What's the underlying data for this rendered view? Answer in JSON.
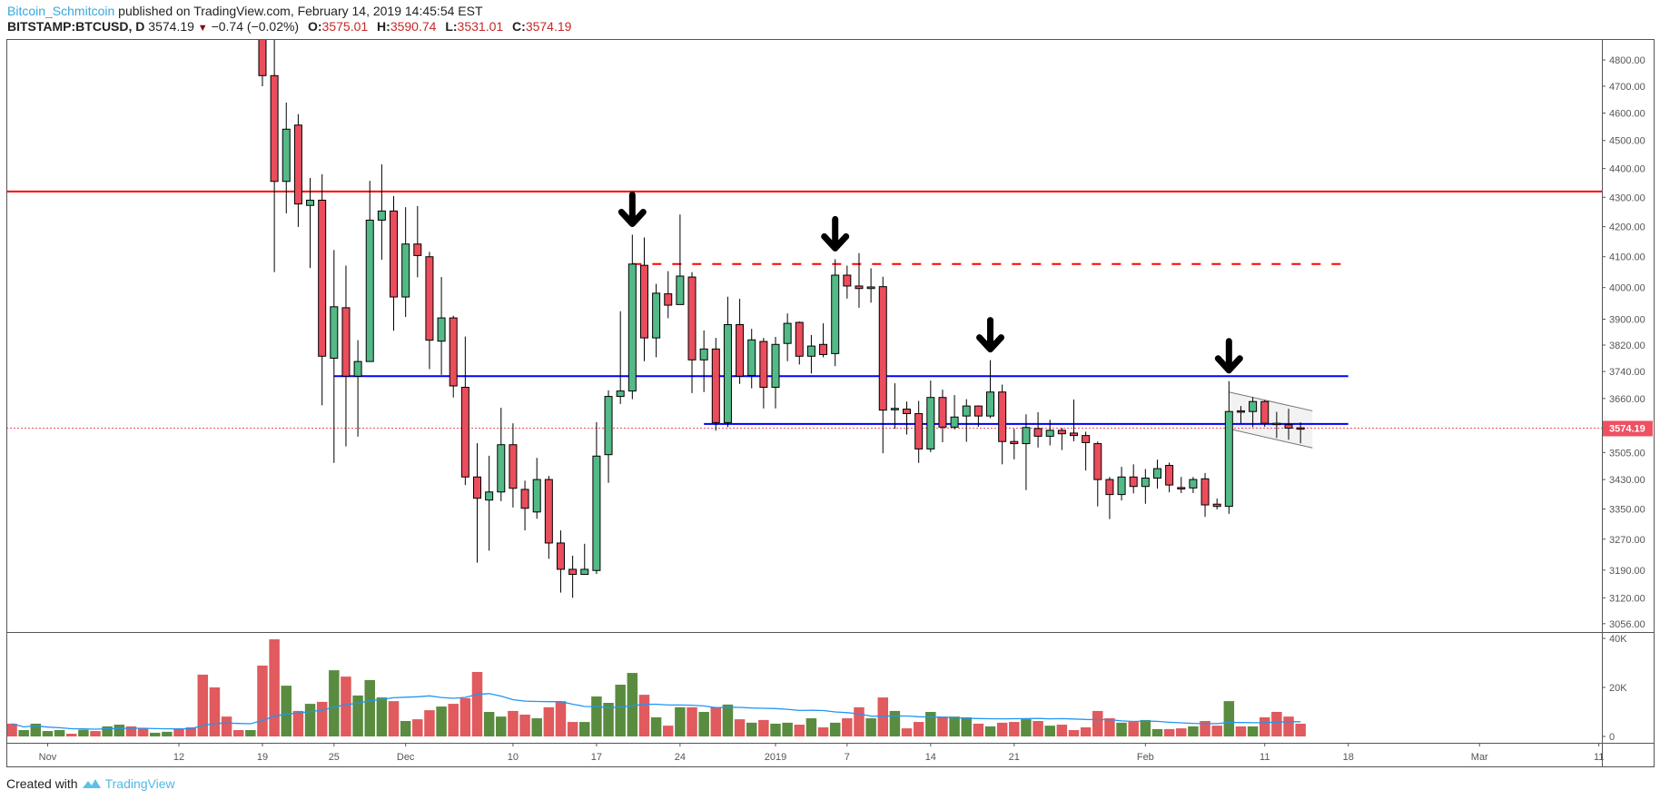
{
  "header": {
    "author": "Bitcoin_Schmitcoin",
    "published": "published on TradingView.com, February 14, 2019 14:45:54 EST",
    "symbol": "BITSTAMP:BTCUSD, D",
    "last": "3574.19",
    "change": "−0.74 (−0.02%)",
    "o_label": "O:",
    "o": "3575.01",
    "h_label": "H:",
    "h": "3590.74",
    "l_label": "L:",
    "l": "3531.01",
    "c_label": "C:",
    "c": "3574.19"
  },
  "footer": {
    "created_with": "Created with",
    "brand": "TradingView"
  },
  "colors": {
    "candle_up": "#53b987",
    "candle_down": "#eb4d5c",
    "volume_up": "#598c3f",
    "volume_down": "#e05a5e",
    "volume_ma": "#2196f3",
    "resistance_solid": "#ff0000",
    "resistance_dashed": "#ff0000",
    "support": "#0000ff",
    "last_price": "#ef5062",
    "author": "#36a8e0"
  },
  "chart_data": {
    "type": "candlestick",
    "symbol": "BITSTAMP:BTCUSD",
    "interval": "D",
    "y_scale": "log",
    "ylim": [
      3035,
      4880
    ],
    "grid": false,
    "price_ticks": [
      "4800.00",
      "4700.00",
      "4600.00",
      "4500.00",
      "4400.00",
      "4300.00",
      "4200.00",
      "4100.00",
      "4000.00",
      "3900.00",
      "3820.00",
      "3740.00",
      "3660.00",
      "3505.00",
      "3430.00",
      "3350.00",
      "3270.00",
      "3190.00",
      "3120.00",
      "3056.00"
    ],
    "last_price_label": "3574.19",
    "volume_ticks": [
      {
        "label": "40K",
        "value": 40
      },
      {
        "label": "20K",
        "value": 20
      },
      {
        "label": "0",
        "value": 0
      }
    ],
    "date_ticks": [
      {
        "label": "Nov",
        "date": "2018-11-01"
      },
      {
        "label": "12",
        "date": "2018-11-12"
      },
      {
        "label": "19",
        "date": "2018-11-19"
      },
      {
        "label": "25",
        "date": "2018-11-25"
      },
      {
        "label": "Dec",
        "date": "2018-12-01"
      },
      {
        "label": "10",
        "date": "2018-12-10"
      },
      {
        "label": "17",
        "date": "2018-12-17"
      },
      {
        "label": "24",
        "date": "2018-12-24"
      },
      {
        "label": "2019",
        "date": "2019-01-01"
      },
      {
        "label": "7",
        "date": "2019-01-07"
      },
      {
        "label": "14",
        "date": "2019-01-14"
      },
      {
        "label": "21",
        "date": "2019-01-21"
      },
      {
        "label": "Feb",
        "date": "2019-02-01"
      },
      {
        "label": "11",
        "date": "2019-02-11"
      },
      {
        "label": "18",
        "date": "2019-02-18"
      },
      {
        "label": "Mar",
        "date": "2019-03-01"
      },
      {
        "label": "11",
        "date": "2019-03-11"
      }
    ],
    "candles_columns": [
      "date",
      "open",
      "high",
      "low",
      "close"
    ],
    "candles": [
      [
        "2018-11-19",
        5560,
        5600,
        4700,
        4740
      ],
      [
        "2018-11-20",
        4740,
        4900,
        4050,
        4355
      ],
      [
        "2018-11-21",
        4355,
        4639,
        4245,
        4541
      ],
      [
        "2018-11-22",
        4556,
        4596,
        4199,
        4277
      ],
      [
        "2018-11-23",
        4272,
        4367,
        4063,
        4290
      ],
      [
        "2018-11-24",
        4290,
        4380,
        3640,
        3786
      ],
      [
        "2018-11-25",
        3780,
        4122,
        3476,
        3939
      ],
      [
        "2018-11-26",
        3936,
        4071,
        3522,
        3726
      ],
      [
        "2018-11-27",
        3726,
        3835,
        3550,
        3770
      ],
      [
        "2018-11-28",
        3770,
        4357,
        3770,
        4222
      ],
      [
        "2018-11-29",
        4222,
        4415,
        4090,
        4253
      ],
      [
        "2018-11-30",
        4253,
        4304,
        3864,
        3970
      ],
      [
        "2018-12-01",
        3970,
        4266,
        3907,
        4142
      ],
      [
        "2018-12-02",
        4142,
        4270,
        4033,
        4104
      ],
      [
        "2018-12-03",
        4100,
        4116,
        3747,
        3835
      ],
      [
        "2018-12-04",
        3832,
        4034,
        3730,
        3904
      ],
      [
        "2018-12-05",
        3904,
        3911,
        3663,
        3697
      ],
      [
        "2018-12-06",
        3693,
        3846,
        3415,
        3437
      ],
      [
        "2018-12-07",
        3437,
        3531,
        3209,
        3379
      ],
      [
        "2018-12-08",
        3374,
        3496,
        3240,
        3396
      ],
      [
        "2018-12-09",
        3396,
        3633,
        3371,
        3527
      ],
      [
        "2018-12-10",
        3527,
        3588,
        3354,
        3406
      ],
      [
        "2018-12-11",
        3403,
        3427,
        3293,
        3352
      ],
      [
        "2018-12-12",
        3342,
        3490,
        3324,
        3430
      ],
      [
        "2018-12-13",
        3430,
        3440,
        3219,
        3260
      ],
      [
        "2018-12-14",
        3260,
        3293,
        3133,
        3192
      ],
      [
        "2018-12-15",
        3192,
        3227,
        3120,
        3179
      ],
      [
        "2018-12-16",
        3179,
        3258,
        3179,
        3192
      ],
      [
        "2018-12-17",
        3189,
        3591,
        3180,
        3495
      ],
      [
        "2018-12-18",
        3499,
        3684,
        3421,
        3666
      ],
      [
        "2018-12-19",
        3666,
        3925,
        3644,
        3682
      ],
      [
        "2018-12-20",
        3682,
        4173,
        3658,
        4076
      ],
      [
        "2018-12-21",
        4072,
        4164,
        3771,
        3842
      ],
      [
        "2018-12-22",
        3842,
        4012,
        3783,
        3982
      ],
      [
        "2018-12-23",
        3980,
        4053,
        3903,
        3944
      ],
      [
        "2018-12-24",
        3946,
        4241,
        3946,
        4037
      ],
      [
        "2018-12-25",
        4034,
        4050,
        3676,
        3775
      ],
      [
        "2018-12-26",
        3775,
        3865,
        3679,
        3808
      ],
      [
        "2018-12-27",
        3808,
        3842,
        3567,
        3590
      ],
      [
        "2018-12-28",
        3590,
        3971,
        3577,
        3883
      ],
      [
        "2018-12-29",
        3883,
        3964,
        3703,
        3726
      ],
      [
        "2018-12-30",
        3728,
        3870,
        3690,
        3836
      ],
      [
        "2018-12-31",
        3831,
        3842,
        3631,
        3693
      ],
      [
        "2019-01-01",
        3693,
        3845,
        3631,
        3822
      ],
      [
        "2019-01-02",
        3825,
        3918,
        3771,
        3887
      ],
      [
        "2019-01-03",
        3890,
        3893,
        3761,
        3786
      ],
      [
        "2019-01-04",
        3786,
        3851,
        3734,
        3817
      ],
      [
        "2019-01-05",
        3822,
        3887,
        3783,
        3791
      ],
      [
        "2019-01-06",
        3794,
        4092,
        3756,
        4040
      ],
      [
        "2019-01-07",
        4040,
        4071,
        3965,
        4005
      ],
      [
        "2019-01-08",
        4005,
        4112,
        3936,
        3997
      ],
      [
        "2019-01-09",
        3997,
        4062,
        3952,
        4002
      ],
      [
        "2019-01-10",
        4003,
        4035,
        3503,
        3626
      ],
      [
        "2019-01-11",
        3627,
        3705,
        3572,
        3631
      ],
      [
        "2019-01-12",
        3629,
        3651,
        3556,
        3616
      ],
      [
        "2019-01-13",
        3616,
        3653,
        3476,
        3515
      ],
      [
        "2019-01-14",
        3515,
        3713,
        3506,
        3663
      ],
      [
        "2019-01-15",
        3663,
        3686,
        3534,
        3577
      ],
      [
        "2019-01-16",
        3577,
        3670,
        3570,
        3606
      ],
      [
        "2019-01-17",
        3609,
        3658,
        3535,
        3638
      ],
      [
        "2019-01-18",
        3638,
        3640,
        3578,
        3609
      ],
      [
        "2019-01-19",
        3609,
        3774,
        3603,
        3679
      ],
      [
        "2019-01-20",
        3679,
        3701,
        3472,
        3536
      ],
      [
        "2019-01-21",
        3536,
        3572,
        3486,
        3530
      ],
      [
        "2019-01-22",
        3530,
        3614,
        3401,
        3576
      ],
      [
        "2019-01-23",
        3573,
        3620,
        3519,
        3551
      ],
      [
        "2019-01-24",
        3551,
        3598,
        3525,
        3568
      ],
      [
        "2019-01-25",
        3568,
        3575,
        3512,
        3558
      ],
      [
        "2019-01-26",
        3560,
        3657,
        3537,
        3553
      ],
      [
        "2019-01-27",
        3553,
        3564,
        3455,
        3533
      ],
      [
        "2019-01-28",
        3530,
        3536,
        3357,
        3430
      ],
      [
        "2019-01-29",
        3430,
        3437,
        3323,
        3389
      ],
      [
        "2019-01-30",
        3389,
        3465,
        3373,
        3437
      ],
      [
        "2019-01-31",
        3437,
        3472,
        3392,
        3411
      ],
      [
        "2019-02-01",
        3411,
        3459,
        3364,
        3434
      ],
      [
        "2019-02-02",
        3434,
        3485,
        3405,
        3460
      ],
      [
        "2019-02-03",
        3469,
        3477,
        3395,
        3415
      ],
      [
        "2019-02-04",
        3408,
        3437,
        3393,
        3407
      ],
      [
        "2019-02-05",
        3407,
        3437,
        3393,
        3430
      ],
      [
        "2019-02-06",
        3432,
        3448,
        3329,
        3361
      ],
      [
        "2019-02-07",
        3363,
        3378,
        3349,
        3357
      ],
      [
        "2019-02-08",
        3357,
        3711,
        3337,
        3622
      ],
      [
        "2019-02-09",
        3624,
        3638,
        3588,
        3623
      ],
      [
        "2019-02-10",
        3622,
        3664,
        3577,
        3651
      ],
      [
        "2019-02-11",
        3651,
        3655,
        3578,
        3588
      ],
      [
        "2019-02-12",
        3588,
        3621,
        3546,
        3587
      ],
      [
        "2019-02-13",
        3584,
        3630,
        3541,
        3574
      ],
      [
        "2019-02-14",
        3575.01,
        3590.74,
        3531.01,
        3574.19
      ]
    ],
    "volume_columns": [
      "date",
      "volume_k",
      "up"
    ],
    "volume": [
      [
        "2018-10-29",
        5.2,
        false
      ],
      [
        "2018-10-30",
        2.6,
        true
      ],
      [
        "2018-10-31",
        5.2,
        true
      ],
      [
        "2018-11-01",
        2.2,
        true
      ],
      [
        "2018-11-02",
        2.6,
        true
      ],
      [
        "2018-11-03",
        1.1,
        false
      ],
      [
        "2018-11-04",
        2.7,
        true
      ],
      [
        "2018-11-05",
        2.2,
        false
      ],
      [
        "2018-11-06",
        4.1,
        true
      ],
      [
        "2018-11-07",
        4.8,
        true
      ],
      [
        "2018-11-08",
        4.1,
        false
      ],
      [
        "2018-11-09",
        3.2,
        false
      ],
      [
        "2018-11-10",
        1.5,
        true
      ],
      [
        "2018-11-11",
        1.9,
        true
      ],
      [
        "2018-11-12",
        3.2,
        false
      ],
      [
        "2018-11-13",
        3.7,
        false
      ],
      [
        "2018-11-14",
        25.2,
        false
      ],
      [
        "2018-11-15",
        20.0,
        false
      ],
      [
        "2018-11-16",
        8.1,
        false
      ],
      [
        "2018-11-17",
        2.6,
        false
      ],
      [
        "2018-11-18",
        2.6,
        true
      ],
      [
        "2018-11-19",
        28.9,
        false
      ],
      [
        "2018-11-20",
        39.6,
        false
      ],
      [
        "2018-11-21",
        20.7,
        true
      ],
      [
        "2018-11-22",
        10.4,
        false
      ],
      [
        "2018-11-23",
        13.3,
        true
      ],
      [
        "2018-11-24",
        14.1,
        false
      ],
      [
        "2018-11-25",
        27.0,
        true
      ],
      [
        "2018-11-26",
        24.4,
        false
      ],
      [
        "2018-11-27",
        16.7,
        true
      ],
      [
        "2018-11-28",
        23.0,
        true
      ],
      [
        "2018-11-29",
        15.9,
        true
      ],
      [
        "2018-11-30",
        14.4,
        false
      ],
      [
        "2018-12-01",
        6.3,
        true
      ],
      [
        "2018-12-02",
        7.0,
        false
      ],
      [
        "2018-12-03",
        10.7,
        false
      ],
      [
        "2018-12-04",
        12.2,
        true
      ],
      [
        "2018-12-05",
        13.3,
        false
      ],
      [
        "2018-12-06",
        15.6,
        false
      ],
      [
        "2018-12-07",
        26.3,
        false
      ],
      [
        "2018-12-08",
        10.0,
        true
      ],
      [
        "2018-12-09",
        8.1,
        true
      ],
      [
        "2018-12-10",
        10.4,
        false
      ],
      [
        "2018-12-11",
        8.9,
        false
      ],
      [
        "2018-12-12",
        7.4,
        true
      ],
      [
        "2018-12-13",
        11.9,
        false
      ],
      [
        "2018-12-14",
        14.4,
        false
      ],
      [
        "2018-12-15",
        5.9,
        false
      ],
      [
        "2018-12-16",
        5.9,
        true
      ],
      [
        "2018-12-17",
        16.3,
        true
      ],
      [
        "2018-12-18",
        13.7,
        true
      ],
      [
        "2018-12-19",
        21.1,
        true
      ],
      [
        "2018-12-20",
        25.9,
        true
      ],
      [
        "2018-12-21",
        17.0,
        false
      ],
      [
        "2018-12-22",
        7.8,
        true
      ],
      [
        "2018-12-23",
        4.4,
        false
      ],
      [
        "2018-12-24",
        11.9,
        true
      ],
      [
        "2018-12-25",
        11.9,
        false
      ],
      [
        "2018-12-26",
        10.0,
        true
      ],
      [
        "2018-12-27",
        11.9,
        false
      ],
      [
        "2018-12-28",
        13.0,
        true
      ],
      [
        "2018-12-29",
        7.0,
        false
      ],
      [
        "2018-12-30",
        5.6,
        true
      ],
      [
        "2018-12-31",
        6.7,
        false
      ],
      [
        "2019-01-01",
        5.2,
        true
      ],
      [
        "2019-01-02",
        5.6,
        true
      ],
      [
        "2019-01-03",
        4.8,
        false
      ],
      [
        "2019-01-04",
        7.4,
        true
      ],
      [
        "2019-01-05",
        3.7,
        false
      ],
      [
        "2019-01-06",
        5.6,
        true
      ],
      [
        "2019-01-07",
        7.4,
        false
      ],
      [
        "2019-01-08",
        11.9,
        false
      ],
      [
        "2019-01-09",
        7.4,
        true
      ],
      [
        "2019-01-10",
        15.9,
        false
      ],
      [
        "2019-01-11",
        10.4,
        true
      ],
      [
        "2019-01-12",
        3.3,
        false
      ],
      [
        "2019-01-13",
        5.9,
        false
      ],
      [
        "2019-01-14",
        10.0,
        true
      ],
      [
        "2019-01-15",
        8.1,
        false
      ],
      [
        "2019-01-16",
        8.1,
        true
      ],
      [
        "2019-01-17",
        7.8,
        true
      ],
      [
        "2019-01-18",
        5.2,
        false
      ],
      [
        "2019-01-19",
        4.1,
        true
      ],
      [
        "2019-01-20",
        5.6,
        false
      ],
      [
        "2019-01-21",
        5.9,
        false
      ],
      [
        "2019-01-22",
        7.0,
        true
      ],
      [
        "2019-01-23",
        6.3,
        false
      ],
      [
        "2019-01-24",
        4.4,
        true
      ],
      [
        "2019-01-25",
        4.8,
        false
      ],
      [
        "2019-01-26",
        2.6,
        false
      ],
      [
        "2019-01-27",
        3.7,
        false
      ],
      [
        "2019-01-28",
        10.4,
        false
      ],
      [
        "2019-01-29",
        7.4,
        false
      ],
      [
        "2019-01-30",
        5.6,
        true
      ],
      [
        "2019-01-31",
        5.9,
        false
      ],
      [
        "2019-02-01",
        6.7,
        true
      ],
      [
        "2019-02-02",
        3.0,
        true
      ],
      [
        "2019-02-03",
        3.0,
        false
      ],
      [
        "2019-02-04",
        3.3,
        false
      ],
      [
        "2019-02-05",
        4.1,
        true
      ],
      [
        "2019-02-06",
        6.3,
        false
      ],
      [
        "2019-02-07",
        4.4,
        false
      ],
      [
        "2019-02-08",
        14.4,
        true
      ],
      [
        "2019-02-09",
        4.1,
        false
      ],
      [
        "2019-02-10",
        4.1,
        true
      ],
      [
        "2019-02-11",
        7.8,
        false
      ],
      [
        "2019-02-12",
        10.0,
        false
      ],
      [
        "2019-02-13",
        8.1,
        false
      ],
      [
        "2019-02-14",
        5.2,
        false
      ]
    ],
    "volume_ma_period": 20,
    "drawings": {
      "horizontal_lines": [
        {
          "name": "resistance-line-solid",
          "price": 4320,
          "style": "solid",
          "color": "#ff0000",
          "from": null,
          "to": null
        },
        {
          "name": "resistance-line-dashed",
          "price": 4076,
          "style": "dashed",
          "color": "#ff0000",
          "from": "2018-12-20",
          "to": "2019-02-18"
        },
        {
          "name": "support-line-upper",
          "price": 3726,
          "style": "solid",
          "color": "#0000ff",
          "from": "2018-11-25",
          "to": "2019-02-18"
        },
        {
          "name": "support-line-lower",
          "price": 3586,
          "style": "solid",
          "color": "#0000ff",
          "from": "2018-12-26",
          "to": "2019-02-18"
        }
      ],
      "arrows": [
        "2018-12-20",
        "2019-01-06",
        "2019-01-19",
        "2019-02-08"
      ],
      "channel": {
        "from": "2019-02-08",
        "to": "2019-02-15",
        "top": [
          3679,
          3624
        ],
        "bottom": [
          3572,
          3518
        ]
      }
    }
  }
}
